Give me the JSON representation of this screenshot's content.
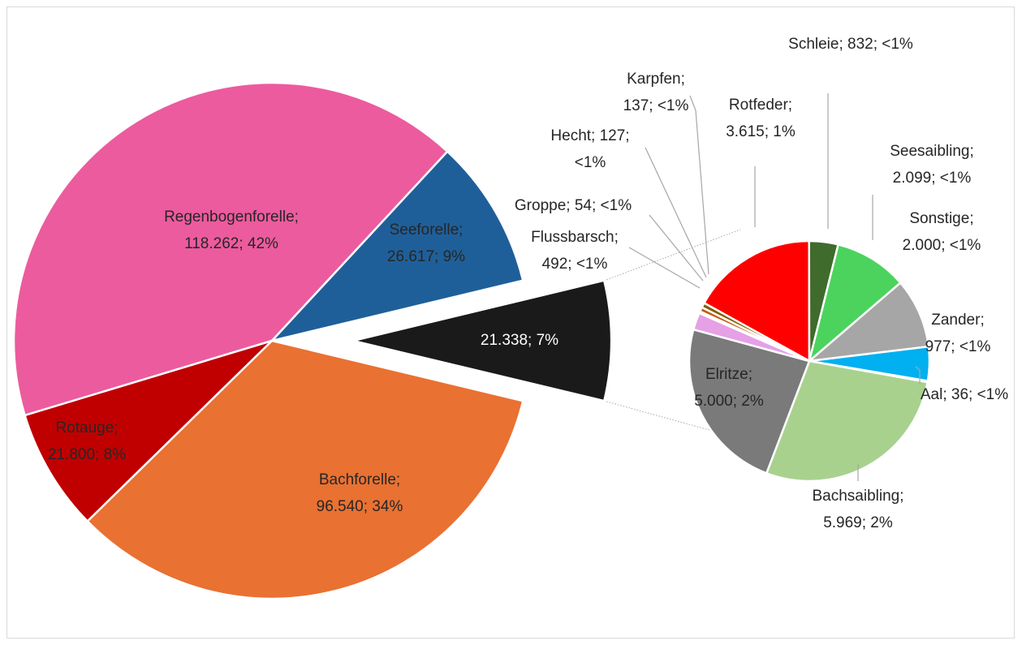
{
  "chart_data": [
    {
      "type": "pie",
      "values": [
        118262,
        26617,
        21338,
        96540,
        21800
      ],
      "value_labels": [
        "Regenbogenforelle; 118.262; 42%",
        "Seeforelle; 26.617; 9%",
        "21.338; 7%",
        "Bachforelle; 96.540; 34%",
        "Rotauge; 21.800; 8%"
      ],
      "colors": [
        "#ec5b9e",
        "#1f5f99",
        "#1a1a1a",
        "#e97132",
        "#c00000"
      ]
    },
    {
      "type": "pie",
      "values": [
        3615,
        832,
        2099,
        2000,
        977,
        36,
        5969,
        5000,
        492,
        54,
        127,
        137
      ],
      "value_labels": [
        "Rotfeder; 3.615; 1%",
        "Schleie; 832; <1%",
        "Seesaibling; 2.099; <1%",
        "Sonstige; 2.000; <1%",
        "Zander; 977; <1%",
        "Aal; 36; <1%",
        "Bachsaibling; 5.969; 2%",
        "Elritze; 5.000; 2%",
        "Flussbarsch; 492; <1%",
        "Groppe; 54; <1%",
        "Hecht; 127; <1%",
        "Karpfen; 137; <1%"
      ],
      "colors": [
        "#ff0000",
        "#3f6b2c",
        "#4cd35e",
        "#a6a6a6",
        "#00b0f0",
        "#0070c0",
        "#a9d18e",
        "#7a7a7a",
        "#e6a0e6",
        "#ffc000",
        "#c55a11",
        "#7f6000"
      ]
    }
  ]
}
